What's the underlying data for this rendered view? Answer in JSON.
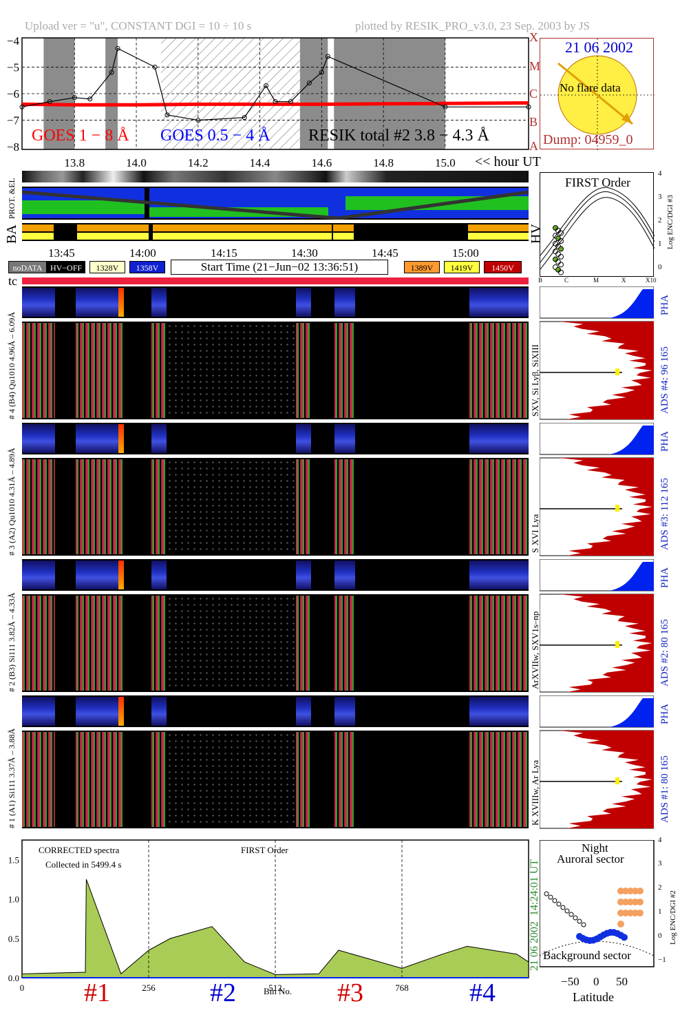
{
  "header": {
    "left": "Upload ver = \"u\", CONSTANT  DGI =  10 ÷  10 s",
    "right": "plotted by RESIK_PRO_v3.0, 23 Sep. 2003 by JS"
  },
  "goes": {
    "yticks": [
      "−4",
      "−5",
      "−6",
      "−7",
      "−8"
    ],
    "class_labels": [
      "X",
      "M",
      "C",
      "B",
      "A"
    ],
    "legend_goes_long": "GOES 1 − 8 Å",
    "legend_goes_short": "GOES 0.5 − 4 Å",
    "legend_resik": "RESIK total #2  3.8 − 4.3 Å",
    "xticks": [
      "13.8",
      "14.0",
      "14.2",
      "14.4",
      "14.6",
      "14.8",
      "15.0"
    ],
    "hour_label": "<< hour UT"
  },
  "sun": {
    "date": "21 06 2002",
    "status": "No flare data",
    "dump": "Dump: 04959_0"
  },
  "strip_labels": {
    "prot": "PROT. &EL",
    "ba": "BA",
    "hv": "HV"
  },
  "time_axis": [
    "13:45",
    "14:00",
    "14:15",
    "14:30",
    "14:45",
    "15:00"
  ],
  "swatches": {
    "nodata": "noDATA",
    "hvoff": "HV−OFF",
    "v1328": "1328V",
    "v1358": "1358V",
    "start_time": "Start Time (21−Jun−02 13:36:51)",
    "v1389": "1389V",
    "v1419": "1419V",
    "v1450": "1450V"
  },
  "tc_label": "tc",
  "first_order": {
    "title": "FIRST Order",
    "yticks": [
      "4",
      "3",
      "2",
      "1",
      "0"
    ],
    "ylabel": "Log ENC/DGI #3",
    "xticks": [
      "B",
      "C",
      "M",
      "X",
      "X10"
    ]
  },
  "channels": [
    {
      "pha_left": "# 4 (B4) Qu1010  4.96Å – 6.09Å",
      "line_label": "SXV, Si Lyβ, SiXIII",
      "ads": "ADS #4:   96 165",
      "pha": "PHA"
    },
    {
      "pha_left": "# 3 (A2) Qu1010  4.31Å – 4.89Å",
      "line_label": "S XVI Lya",
      "ads": "ADS #3:  112 165",
      "pha": "PHA"
    },
    {
      "pha_left": "# 2 (B3) Si111  3.82Å – 4.33Å",
      "line_label": "ArXVIIw, SXV1s–np",
      "ads": "ADS #2:   80 165",
      "pha": "PHA"
    },
    {
      "pha_left": "# 1 (A1) Si111  3.37Å – 3.88Å",
      "line_label": "K XVIIIw, Ar Lya",
      "ads": "ADS #1:   80 165",
      "pha": "PHA"
    }
  ],
  "spectrum": {
    "title_left": "CORRECTED spectra",
    "collected": "Collected in  5499.4 s",
    "title_center": "FIRST Order",
    "yticks": [
      "1.5",
      "1.0",
      "0.5",
      "0.0"
    ],
    "xticks": [
      "0",
      "256",
      "512",
      "768"
    ],
    "xlabel": "Bin No.",
    "side_time": "14:24:01 UT",
    "side_date": "21 06 2002",
    "channel_labels": [
      "#1",
      "#2",
      "#3",
      "#4"
    ]
  },
  "latitude": {
    "night": "Night",
    "auroral": "Auroral sector",
    "background": "Background sector",
    "xticks": [
      "−50",
      "0",
      "50"
    ],
    "xlabel": "Latitude",
    "yticks": [
      "4",
      "3",
      "2",
      "1",
      "0",
      "−1"
    ],
    "ylabel": "Log ENC/DGI #2"
  },
  "colors": {
    "goes_long": "#ff0000",
    "goes_short": "#0000ff",
    "sun": "#ffee44",
    "ads_fill": "#c00000",
    "pha_fill": "#0022ee",
    "green_label": "#2a8a2a",
    "gray_band": "#8c8c8c"
  },
  "chart_data": [
    {
      "type": "line",
      "title": "",
      "xlabel": "",
      "ylabel": "",
      "xlim": [
        13.63,
        15.27
      ],
      "ylim": [
        -8.1,
        -3.9
      ],
      "series": [
        {
          "name": "GOES 1 − 8 Å",
          "x": [
            13.63,
            13.8,
            14.0,
            14.2,
            14.4,
            14.6,
            14.8,
            15.0,
            15.27
          ],
          "values": [
            -6.4,
            -6.42,
            -6.42,
            -6.4,
            -6.4,
            -6.4,
            -6.38,
            -6.37,
            -6.35
          ]
        },
        {
          "name": "RESIK total #2  3.8 − 4.3 Å",
          "x": [
            13.63,
            13.72,
            13.8,
            13.85,
            13.92,
            13.94,
            14.06,
            14.1,
            14.2,
            14.35,
            14.42,
            14.45,
            14.5,
            14.56,
            14.6,
            14.62,
            15.0,
            15.27
          ],
          "values": [
            -6.5,
            -6.3,
            -6.15,
            -6.2,
            -5.2,
            -4.3,
            -5.0,
            -6.8,
            -7.0,
            -6.9,
            -5.7,
            -6.3,
            -6.3,
            -5.6,
            -5.2,
            -4.6,
            -6.5,
            -6.5
          ]
        }
      ]
    },
    {
      "type": "area",
      "title": "FIRST Order",
      "xlabel": "Bin No.",
      "ylabel": "",
      "xlim": [
        0,
        1024
      ],
      "ylim": [
        0,
        1.75
      ],
      "series": [
        {
          "name": "",
          "x": [
            0,
            64,
            128,
            130,
            200,
            256,
            300,
            384,
            450,
            512,
            600,
            640,
            768,
            850,
            900,
            1000,
            1024
          ],
          "values": [
            0.05,
            0.06,
            0.07,
            1.25,
            0.05,
            0.35,
            0.5,
            0.65,
            0.2,
            0.04,
            0.05,
            0.35,
            0.12,
            0.3,
            0.4,
            0.3,
            0.2
          ]
        }
      ]
    }
  ]
}
